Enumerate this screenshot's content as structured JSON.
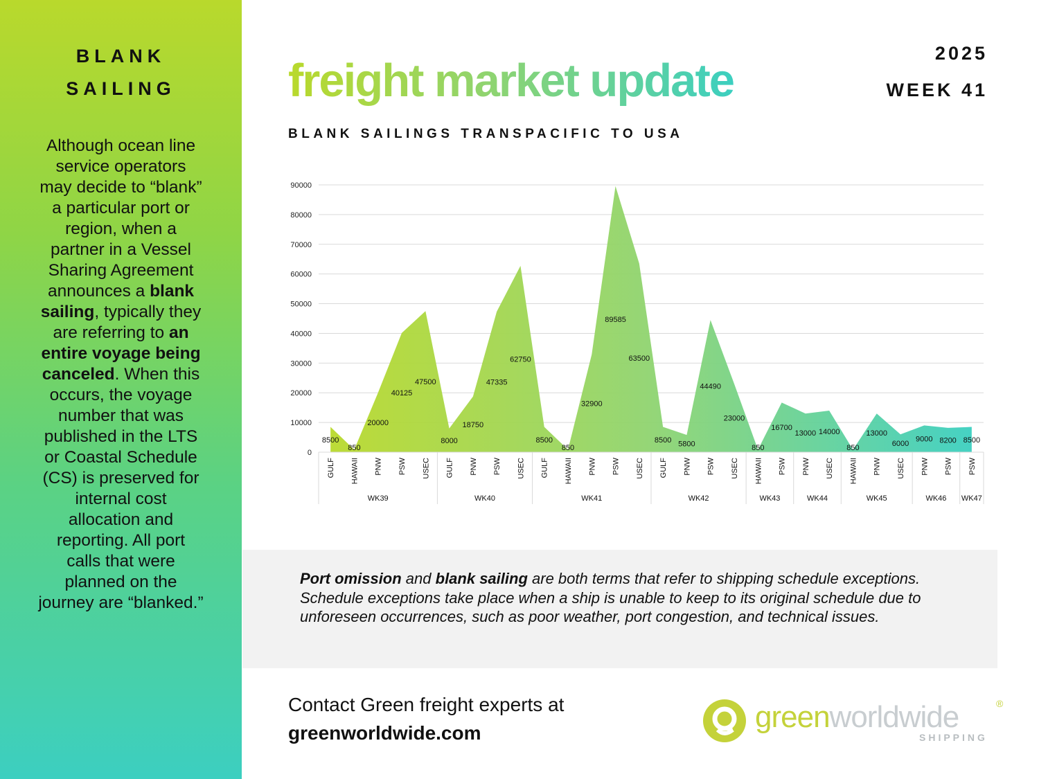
{
  "sidebar": {
    "title_line1": "BLANK",
    "title_line2": "SAILING",
    "body": [
      {
        "t": "Although ocean line service operators may decide to “blank” a particular port or region, when a partner in a Vessel Sharing Agreement announces a ",
        "b": false
      },
      {
        "t": "blank sailing",
        "b": true
      },
      {
        "t": ", typically they are referring to ",
        "b": false
      },
      {
        "t": "an entire voyage being canceled",
        "b": true
      },
      {
        "t": ". When this occurs, the voyage number that was published in the LTS or Coastal Schedule (CS) is preserved for internal cost allocation and reporting. All port calls that were planned on the journey are “blanked.”",
        "b": false
      }
    ]
  },
  "header": {
    "headline": "freight market update",
    "year": "2025",
    "week": "WEEK 41",
    "chart_subtitle": "BLANK SAILINGS  TRANSPACIFIC TO USA"
  },
  "colors": {
    "gradient_start": "#b9d92c",
    "gradient_mid": "#8fd470",
    "gradient_end": "#3ccfc0",
    "info_bg": "#f2f2f2"
  },
  "chart_data": {
    "type": "area",
    "title": "",
    "xlabel": "",
    "ylabel": "",
    "ylim": [
      0,
      90000
    ],
    "yticks": [
      0,
      10000,
      20000,
      30000,
      40000,
      50000,
      60000,
      70000,
      80000,
      90000
    ],
    "grid": true,
    "legend": "none",
    "categories": [
      "GULF",
      "HAWAII",
      "PNW",
      "PSW",
      "USEC",
      "GULF",
      "PNW",
      "PSW",
      "USEC",
      "GULF",
      "HAWAII",
      "PNW",
      "PSW",
      "USEC",
      "GULF",
      "PNW",
      "PSW",
      "USEC",
      "HAWAII",
      "PSW",
      "PNW",
      "USEC",
      "HAWAII",
      "PNW",
      "USEC",
      "PNW",
      "PSW",
      "PSW"
    ],
    "values": [
      8500,
      850,
      20000,
      40125,
      47500,
      8000,
      18750,
      47335,
      62750,
      8500,
      850,
      32900,
      89585,
      63500,
      8500,
      5800,
      44490,
      23000,
      850,
      16700,
      13000,
      14000,
      850,
      13000,
      6000,
      9000,
      8200,
      8500
    ],
    "groups": [
      {
        "label": "WK39",
        "count": 5
      },
      {
        "label": "WK40",
        "count": 4
      },
      {
        "label": "WK41",
        "count": 5
      },
      {
        "label": "WK42",
        "count": 4
      },
      {
        "label": "WK43",
        "count": 2
      },
      {
        "label": "WK44",
        "count": 2
      },
      {
        "label": "WK45",
        "count": 3
      },
      {
        "label": "WK46",
        "count": 2
      },
      {
        "label": "WK47",
        "count": 1
      }
    ]
  },
  "info": {
    "parts": [
      {
        "t": "Port omission",
        "b": true
      },
      {
        "t": " and ",
        "b": false
      },
      {
        "t": "blank sailing",
        "b": true
      },
      {
        "t": " are both terms that refer to shipping schedule exceptions. Schedule exceptions take place when a ship is unable to keep to its original schedule due to unforeseen occurrences, such as poor weather, port congestion, and technical issues.",
        "b": false
      }
    ]
  },
  "footer": {
    "contact_line": "Contact Green freight experts at",
    "contact_link": "greenworldwide.com",
    "logo_word_green": "green",
    "logo_word_rest": "worldwide",
    "logo_registered": "®",
    "logo_sub": "SHIPPING"
  }
}
